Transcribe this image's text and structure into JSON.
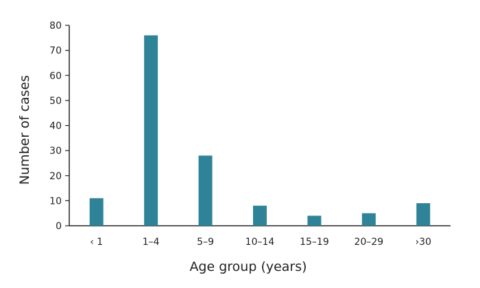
{
  "chart_data": {
    "type": "bar",
    "title": "",
    "xlabel": "Age group (years)",
    "ylabel": "Number of cases",
    "categories": [
      "‹ 1",
      "1–4",
      "5–9",
      "10–14",
      "15–19",
      "20–29",
      "›30"
    ],
    "values": [
      11,
      76,
      28,
      8,
      4,
      5,
      9
    ],
    "ylim": [
      0,
      80
    ],
    "yticks": [
      0,
      10,
      20,
      30,
      40,
      50,
      60,
      70,
      80
    ],
    "grid": false,
    "legend": "none",
    "bar_color": "#2e8398",
    "axis_color": "#222222"
  }
}
